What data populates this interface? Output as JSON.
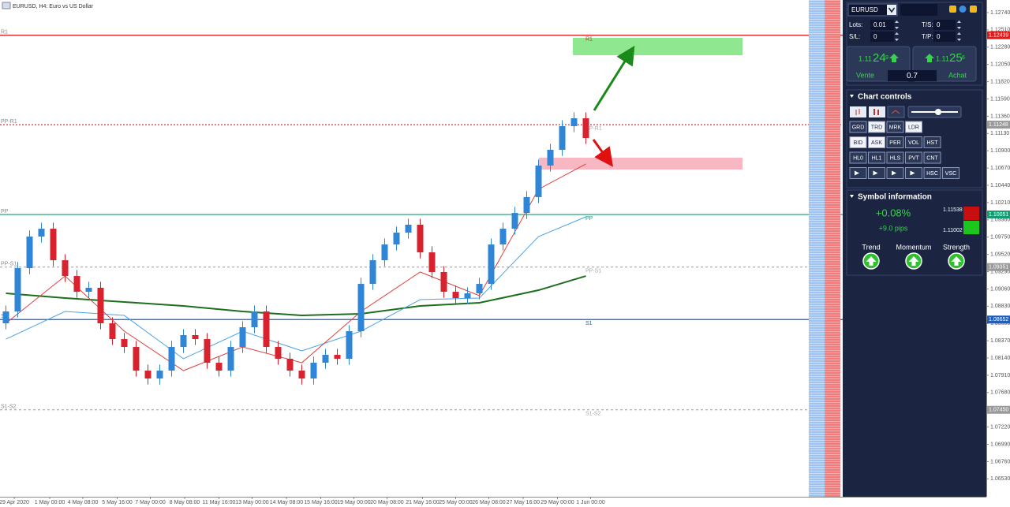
{
  "window": {
    "title": "EURUSD, H4:  Euro vs US Dollar"
  },
  "chart_data": {
    "type": "candlestick",
    "xlim": [
      -0.5,
      49.5
    ],
    "ylim": [
      1.06292,
      1.12908
    ],
    "up_color": "#2f86d6",
    "down_color": "#d8232f",
    "open": [
      1.08602,
      1.0876,
      1.09337,
      1.09757,
      1.09862,
      1.09442,
      1.09232,
      1.09022,
      1.09075,
      1.08602,
      1.08392,
      1.08287,
      1.07972,
      1.07867,
      1.07972,
      1.08287,
      1.08445,
      1.08392,
      1.08077,
      1.07972,
      1.08287,
      1.0855,
      1.0876,
      1.08287,
      1.0813,
      1.07972,
      1.07867,
      1.08077,
      1.08182,
      1.0813,
      1.08497,
      1.09127,
      1.09442,
      1.09652,
      1.0981,
      1.09915,
      1.09547,
      1.09285,
      1.09022,
      1.08938,
      1.09001,
      1.09127,
      1.09652,
      1.09862,
      1.10072,
      1.10283,
      1.10703,
      1.10913,
      1.11228,
      1.11333
    ],
    "high": [
      1.0884,
      1.09417,
      1.09837,
      1.09942,
      1.09942,
      1.09522,
      1.09312,
      1.09155,
      1.09155,
      1.08682,
      1.08472,
      1.08367,
      1.08052,
      1.08052,
      1.08367,
      1.08525,
      1.08525,
      1.08472,
      1.08157,
      1.08367,
      1.0863,
      1.0884,
      1.0884,
      1.08367,
      1.0821,
      1.08052,
      1.08157,
      1.08262,
      1.08262,
      1.08577,
      1.09207,
      1.09522,
      1.09732,
      1.0989,
      1.09995,
      1.09995,
      1.09627,
      1.09365,
      1.09102,
      1.09081,
      1.09207,
      1.09732,
      1.09942,
      1.10152,
      1.10363,
      1.10783,
      1.10993,
      1.11308,
      1.11413,
      1.11413
    ],
    "low": [
      1.08522,
      1.0868,
      1.09257,
      1.09677,
      1.09362,
      1.09152,
      1.08942,
      1.08942,
      1.08522,
      1.08312,
      1.08207,
      1.07892,
      1.07787,
      1.07787,
      1.07892,
      1.08207,
      1.08312,
      1.07997,
      1.07892,
      1.07892,
      1.08207,
      1.0847,
      1.08207,
      1.0805,
      1.07892,
      1.07787,
      1.07787,
      1.07997,
      1.0805,
      1.0805,
      1.08417,
      1.09047,
      1.09362,
      1.09572,
      1.0973,
      1.09467,
      1.09205,
      1.08942,
      1.08858,
      1.08858,
      1.08921,
      1.09047,
      1.09572,
      1.09782,
      1.09992,
      1.10203,
      1.10623,
      1.10833,
      1.11148,
      1.1099
    ],
    "close": [
      1.0876,
      1.09337,
      1.09757,
      1.09862,
      1.09442,
      1.09232,
      1.09022,
      1.09075,
      1.08602,
      1.08392,
      1.08287,
      1.07972,
      1.07867,
      1.07972,
      1.08287,
      1.08445,
      1.08392,
      1.08077,
      1.07972,
      1.08287,
      1.0855,
      1.0876,
      1.08287,
      1.0813,
      1.07972,
      1.07867,
      1.08077,
      1.08182,
      1.0813,
      1.08497,
      1.09127,
      1.09442,
      1.09652,
      1.0981,
      1.09915,
      1.09547,
      1.09285,
      1.09022,
      1.08938,
      1.09001,
      1.09127,
      1.09652,
      1.09862,
      1.10072,
      1.10283,
      1.10703,
      1.10913,
      1.11228,
      1.11333,
      1.1107
    ],
    "moving_averages": [
      {
        "color": "#1d6e1d",
        "width": 2,
        "x": [
          0,
          5,
          10,
          15,
          20,
          25,
          30,
          35,
          40,
          45,
          49
        ],
        "values": [
          1.09001,
          1.08938,
          1.08886,
          1.08833,
          1.0876,
          1.08707,
          1.08728,
          1.08833,
          1.08875,
          1.09043,
          1.09232
        ]
      },
      {
        "color": "#4aa3e8",
        "width": 1,
        "x": [
          0,
          5,
          10,
          15,
          20,
          25,
          30,
          35,
          40,
          45,
          49
        ],
        "values": [
          1.08392,
          1.0876,
          1.08707,
          1.0813,
          1.08497,
          1.08235,
          1.08497,
          1.08917,
          1.08938,
          1.09757,
          1.1002
        ]
      },
      {
        "color": "#e0403c",
        "width": 1,
        "x": [
          0,
          5,
          10,
          15,
          20,
          25,
          30,
          35,
          40,
          45,
          49
        ],
        "values": [
          1.08602,
          1.09232,
          1.08497,
          1.07972,
          1.08287,
          1.08077,
          1.0876,
          1.09285,
          1.0897,
          1.10388,
          1.10724
        ]
      }
    ],
    "levels": [
      {
        "name": "R1",
        "value": 1.12439,
        "label": "1.12439",
        "color": "#e01b1b",
        "tag_color": "#e01b1b",
        "style": "solid"
      },
      {
        "name": "PP-R1",
        "value": 1.11248,
        "label": "1.11248",
        "color": "#b01818",
        "tag_color": "#9a9a9a",
        "style": "dotted"
      },
      {
        "name": "PP",
        "value": 1.10051,
        "label": "1.10051",
        "color": "#159a72",
        "tag_color": "#159a72",
        "style": "solid"
      },
      {
        "name": "PP-S1",
        "value": 1.09351,
        "label": "1.09351",
        "color": "#9a9a9a",
        "tag_color": "#9a9a9a",
        "style": "dashed"
      },
      {
        "name": "S1",
        "value": 1.08652,
        "label": "1.08652",
        "color": "#1a5fc0",
        "tag_color": "#1a5fc0",
        "style": "solid"
      },
      {
        "name": "S1-S2",
        "value": 1.0745,
        "label": "1.07450",
        "color": "#9a9a9a",
        "tag_color": "#9a9a9a",
        "style": "dashed"
      }
    ],
    "yticks": [
      {
        "value": 1.1274,
        "label": "1.12740"
      },
      {
        "value": 1.1251,
        "label": "1.12510"
      },
      {
        "value": 1.1228,
        "label": "1.12280"
      },
      {
        "value": 1.1205,
        "label": "1.12050"
      },
      {
        "value": 1.1182,
        "label": "1.11820"
      },
      {
        "value": 1.1159,
        "label": "1.11590"
      },
      {
        "value": 1.1136,
        "label": "1.11360"
      },
      {
        "value": 1.1113,
        "label": "1.11130"
      },
      {
        "value": 1.109,
        "label": "1.10900"
      },
      {
        "value": 1.1067,
        "label": "1.10670"
      },
      {
        "value": 1.1044,
        "label": "1.10440"
      },
      {
        "value": 1.1021,
        "label": "1.10210"
      },
      {
        "value": 1.0998,
        "label": "1.09980"
      },
      {
        "value": 1.0975,
        "label": "1.09750"
      },
      {
        "value": 1.0952,
        "label": "1.09520"
      },
      {
        "value": 1.0929,
        "label": "1.09290"
      },
      {
        "value": 1.0906,
        "label": "1.09060"
      },
      {
        "value": 1.0883,
        "label": "1.08830"
      },
      {
        "value": 1.086,
        "label": "1.08600"
      },
      {
        "value": 1.0837,
        "label": "1.08370"
      },
      {
        "value": 1.0814,
        "label": "1.08140"
      },
      {
        "value": 1.0791,
        "label": "1.07910"
      },
      {
        "value": 1.0768,
        "label": "1.07680"
      },
      {
        "value": 1.0745,
        "label": "1.07450"
      },
      {
        "value": 1.0722,
        "label": "1.07220"
      },
      {
        "value": 1.0699,
        "label": "1.06990"
      },
      {
        "value": 1.0676,
        "label": "1.06760"
      },
      {
        "value": 1.0653,
        "label": "1.06530"
      }
    ],
    "xticks": [
      {
        "value": 0.7,
        "label": "29 Apr 2020"
      },
      {
        "value": 3.7,
        "label": "1 May 00:00"
      },
      {
        "value": 6.5,
        "label": "4 May 08:00"
      },
      {
        "value": 9.4,
        "label": "5 May 16:00"
      },
      {
        "value": 12.2,
        "label": "7 May 00:00"
      },
      {
        "value": 15.1,
        "label": "8 May 08:00"
      },
      {
        "value": 18,
        "label": "11 May 16:00"
      },
      {
        "value": 20.8,
        "label": "13 May 00:00"
      },
      {
        "value": 23.7,
        "label": "14 May 08:00"
      },
      {
        "value": 26.6,
        "label": "15 May 16:00"
      },
      {
        "value": 29.4,
        "label": "19 May 00:00"
      },
      {
        "value": 32.2,
        "label": "20 May 08:00"
      },
      {
        "value": 35.2,
        "label": "21 May 16:00"
      },
      {
        "value": 38,
        "label": "25 May 00:00"
      },
      {
        "value": 40.8,
        "label": "26 May 08:00"
      },
      {
        "value": 43.7,
        "label": "27 May 16:00"
      },
      {
        "value": 46.6,
        "label": "29 May 00:00"
      },
      {
        "value": 49.4,
        "label": "1 Jun 00:00"
      }
    ]
  },
  "panel": {
    "symbol": "EURUSD",
    "lots_label": "Lots:",
    "lots": "0.01",
    "ts_label": "T/S:",
    "ts": "0",
    "sl_label": "S/L:",
    "sl": "0",
    "tp_label": "T/P:",
    "tp": "0",
    "sell": {
      "prefix": "1.11",
      "big": "24",
      "sup": "9",
      "label": "Vente"
    },
    "spread": "0.7",
    "buy": {
      "prefix": "1.11",
      "big": "25",
      "sup": "6",
      "label": "Achat"
    },
    "chart_controls": {
      "title": "Chart controls",
      "rows": [
        [
          "GRD",
          "TRD",
          "MRK",
          "LDR"
        ],
        [
          "BID",
          "ASK",
          "PER",
          "VOL",
          "HST"
        ],
        [
          "HL0",
          "HL1",
          "HLS",
          "PVT",
          "CNT"
        ],
        [
          "HSC",
          "VSC"
        ]
      ]
    },
    "symbol_info": {
      "title": "Symbol information",
      "change": "+0.08%",
      "pips": "+9.0 pips",
      "high": "1.11538",
      "low": "1.11002",
      "indicators": [
        "Trend",
        "Momentum",
        "Strength"
      ]
    }
  }
}
